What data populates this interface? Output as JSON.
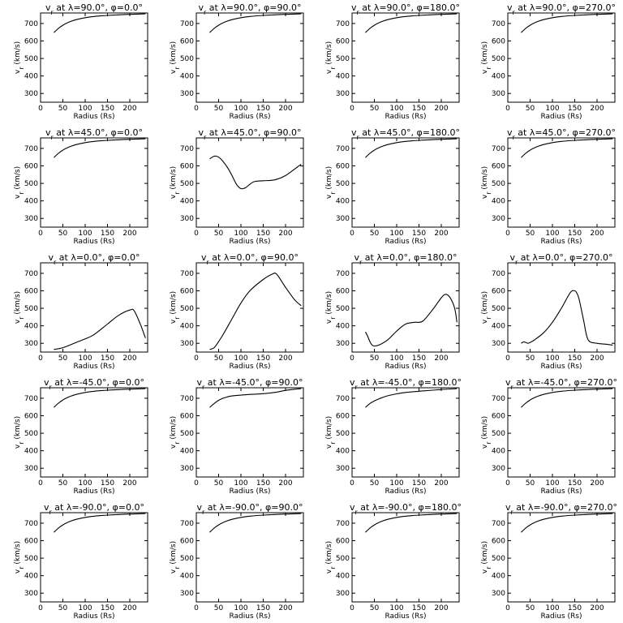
{
  "chart_data": {
    "type": "line",
    "layout": "5x4 grid",
    "xlabel": "Radius (Rs)",
    "ylabel": "v_r (km/s)",
    "xlim": [
      0,
      240
    ],
    "ylim": [
      250,
      760
    ],
    "xticks": [
      0,
      50,
      100,
      150,
      200
    ],
    "yticks": [
      300,
      400,
      500,
      600,
      700
    ],
    "panels": [
      {
        "title": "v_r at λ=90.0°, φ=0.0°",
        "x": [
          30,
          40,
          50,
          60,
          70,
          80,
          100,
          120,
          150,
          180,
          200,
          235
        ],
        "y": [
          648,
          672,
          690,
          704,
          714,
          722,
          733,
          740,
          746,
          750,
          752,
          755
        ]
      },
      {
        "title": "v_r at λ=90.0°, φ=90.0°",
        "x": [
          30,
          40,
          50,
          60,
          70,
          80,
          100,
          120,
          150,
          180,
          200,
          235
        ],
        "y": [
          648,
          672,
          690,
          704,
          714,
          722,
          733,
          740,
          746,
          750,
          752,
          755
        ]
      },
      {
        "title": "v_r at λ=90.0°, φ=180.0°",
        "x": [
          30,
          40,
          50,
          60,
          70,
          80,
          100,
          120,
          150,
          180,
          200,
          235
        ],
        "y": [
          648,
          672,
          690,
          704,
          714,
          722,
          733,
          740,
          746,
          750,
          752,
          755
        ]
      },
      {
        "title": "v_r at λ=90.0°, φ=270.0°",
        "x": [
          30,
          40,
          50,
          60,
          70,
          80,
          100,
          120,
          150,
          180,
          200,
          235
        ],
        "y": [
          648,
          672,
          690,
          704,
          714,
          722,
          733,
          740,
          746,
          750,
          752,
          755
        ]
      },
      {
        "title": "v_r at λ=45.0°, φ=0.0°",
        "x": [
          30,
          40,
          50,
          60,
          70,
          80,
          100,
          120,
          150,
          180,
          200,
          235
        ],
        "y": [
          648,
          672,
          690,
          704,
          714,
          722,
          733,
          740,
          746,
          750,
          752,
          755
        ]
      },
      {
        "title": "v_r at λ=45.0°, φ=90.0°",
        "x": [
          30,
          40,
          50,
          60,
          70,
          80,
          90,
          100,
          110,
          120,
          130,
          150,
          175,
          200,
          235
        ],
        "y": [
          640,
          655,
          650,
          625,
          590,
          545,
          495,
          470,
          475,
          495,
          510,
          515,
          520,
          545,
          610
        ]
      },
      {
        "title": "v_r at λ=45.0°, φ=180.0°",
        "x": [
          30,
          40,
          50,
          60,
          70,
          80,
          100,
          120,
          150,
          180,
          200,
          235
        ],
        "y": [
          648,
          672,
          690,
          704,
          714,
          722,
          733,
          740,
          746,
          750,
          752,
          755
        ]
      },
      {
        "title": "v_r at λ=45.0°, φ=270.0°",
        "x": [
          30,
          40,
          50,
          60,
          70,
          80,
          100,
          120,
          150,
          180,
          200,
          235
        ],
        "y": [
          648,
          672,
          690,
          704,
          714,
          722,
          733,
          740,
          746,
          750,
          752,
          755
        ]
      },
      {
        "title": "v_r at λ=0.0°, φ=0.0°",
        "x": [
          30,
          50,
          80,
          100,
          120,
          150,
          175,
          200,
          210,
          225,
          235
        ],
        "y": [
          265,
          275,
          305,
          325,
          350,
          410,
          460,
          490,
          485,
          400,
          330
        ]
      },
      {
        "title": "v_r at λ=0.0°, φ=90.0°",
        "x": [
          30,
          40,
          50,
          60,
          80,
          100,
          120,
          150,
          170,
          180,
          200,
          220,
          235
        ],
        "y": [
          265,
          275,
          310,
          350,
          440,
          530,
          600,
          665,
          695,
          695,
          620,
          550,
          515
        ]
      },
      {
        "title": "v_r at λ=0.0°, φ=180.0°",
        "x": [
          30,
          35,
          40,
          45,
          50,
          60,
          80,
          100,
          120,
          140,
          150,
          160,
          180,
          200,
          210,
          220,
          230,
          235
        ],
        "y": [
          365,
          340,
          310,
          290,
          285,
          290,
          320,
          370,
          410,
          420,
          420,
          430,
          490,
          560,
          580,
          560,
          500,
          420
        ]
      },
      {
        "title": "v_r at λ=0.0°, φ=270.0°",
        "x": [
          30,
          35,
          40,
          45,
          50,
          60,
          80,
          100,
          120,
          140,
          150,
          155,
          160,
          170,
          180,
          200,
          220,
          235
        ],
        "y": [
          300,
          308,
          305,
          300,
          305,
          320,
          360,
          420,
          500,
          590,
          600,
          585,
          550,
          430,
          320,
          300,
          295,
          290
        ]
      },
      {
        "title": "v_r at λ=-45.0°, φ=0.0°",
        "x": [
          30,
          40,
          50,
          60,
          70,
          80,
          100,
          120,
          150,
          180,
          200,
          235
        ],
        "y": [
          648,
          672,
          690,
          704,
          714,
          722,
          733,
          740,
          746,
          750,
          752,
          755
        ]
      },
      {
        "title": "v_r at λ=-45.0°, φ=90.0°",
        "x": [
          30,
          40,
          50,
          60,
          70,
          80,
          100,
          120,
          150,
          180,
          200,
          235
        ],
        "y": [
          648,
          670,
          688,
          700,
          708,
          713,
          718,
          722,
          726,
          735,
          745,
          755
        ]
      },
      {
        "title": "v_r at λ=-45.0°, φ=180.0°",
        "x": [
          30,
          40,
          50,
          60,
          70,
          80,
          100,
          120,
          150,
          180,
          200,
          235
        ],
        "y": [
          648,
          670,
          685,
          696,
          706,
          714,
          725,
          733,
          740,
          746,
          750,
          755
        ]
      },
      {
        "title": "v_r at λ=-45.0°, φ=270.0°",
        "x": [
          30,
          40,
          50,
          60,
          70,
          80,
          100,
          120,
          150,
          180,
          200,
          235
        ],
        "y": [
          648,
          672,
          690,
          704,
          714,
          722,
          733,
          740,
          746,
          750,
          752,
          755
        ]
      },
      {
        "title": "v_r at λ=-90.0°, φ=0.0°",
        "x": [
          30,
          40,
          50,
          60,
          70,
          80,
          100,
          120,
          150,
          180,
          200,
          235
        ],
        "y": [
          648,
          672,
          690,
          704,
          714,
          722,
          733,
          740,
          746,
          750,
          752,
          755
        ]
      },
      {
        "title": "v_r at λ=-90.0°, φ=90.0°",
        "x": [
          30,
          40,
          50,
          60,
          70,
          80,
          100,
          120,
          150,
          180,
          200,
          235
        ],
        "y": [
          648,
          672,
          690,
          704,
          714,
          722,
          733,
          740,
          746,
          750,
          752,
          755
        ]
      },
      {
        "title": "v_r at λ=-90.0°, φ=180.0°",
        "x": [
          30,
          40,
          50,
          60,
          70,
          80,
          100,
          120,
          150,
          180,
          200,
          235
        ],
        "y": [
          648,
          672,
          690,
          704,
          714,
          722,
          733,
          740,
          746,
          750,
          752,
          755
        ]
      },
      {
        "title": "v_r at λ=-90.0°, φ=270.0°",
        "x": [
          30,
          40,
          50,
          60,
          70,
          80,
          100,
          120,
          150,
          180,
          200,
          235
        ],
        "y": [
          648,
          672,
          690,
          704,
          714,
          722,
          733,
          740,
          746,
          750,
          752,
          755
        ]
      }
    ]
  }
}
